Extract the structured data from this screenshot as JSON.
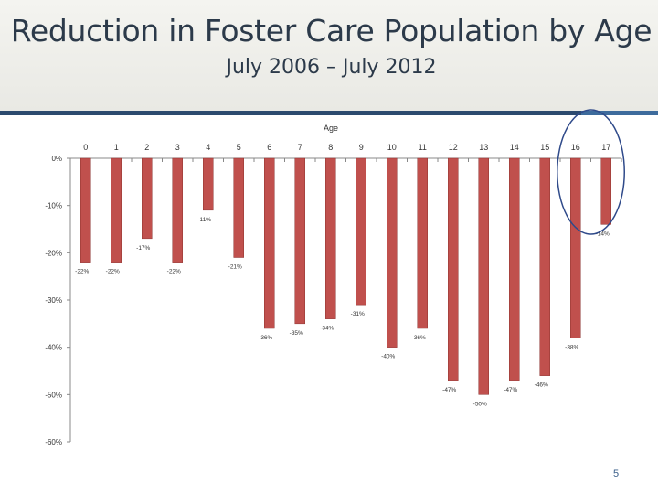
{
  "header": {
    "title": "Reduction in Foster Care Population by Age",
    "subtitle": "July 2006 – July 2012"
  },
  "page_number": "5",
  "colors": {
    "bar": "#c0504d",
    "bar_edge": "#8e3330",
    "axis": "#888888",
    "highlight_ellipse": "#2f4a8a",
    "header_rule": "#2c4a6e"
  },
  "chart_data": {
    "type": "bar",
    "title": "",
    "xlabel": "Age",
    "ylabel": "",
    "categories": [
      "0",
      "1",
      "2",
      "3",
      "4",
      "5",
      "6",
      "7",
      "8",
      "9",
      "10",
      "11",
      "12",
      "13",
      "14",
      "15",
      "16",
      "17"
    ],
    "series": [
      {
        "values": [
          -22,
          -22,
          -17,
          -22,
          -11,
          -21,
          -36,
          -35,
          -34,
          -31,
          -40,
          -36,
          -47,
          -50,
          -47,
          -46,
          -38,
          -14
        ],
        "data_labels": [
          "-22%",
          "-22%",
          "-17%",
          "-22%",
          "-11%",
          "-21%",
          "-36%",
          "-35%",
          "-34%",
          "-31%",
          "-40%",
          "-36%",
          "-47%",
          "-50%",
          "-47%",
          "-46%",
          "-38%",
          "-14%"
        ]
      }
    ],
    "ylim": [
      -60,
      0
    ],
    "y_ticks": [
      0,
      -10,
      -20,
      -30,
      -40,
      -50,
      -60
    ],
    "y_tick_labels": [
      "0%",
      "-10%",
      "-20%",
      "-30%",
      "-40%",
      "-50%",
      "-60%"
    ],
    "x_axis_position": "top",
    "grid": false,
    "legend": "none",
    "highlighted_categories": [
      "16",
      "17"
    ]
  }
}
